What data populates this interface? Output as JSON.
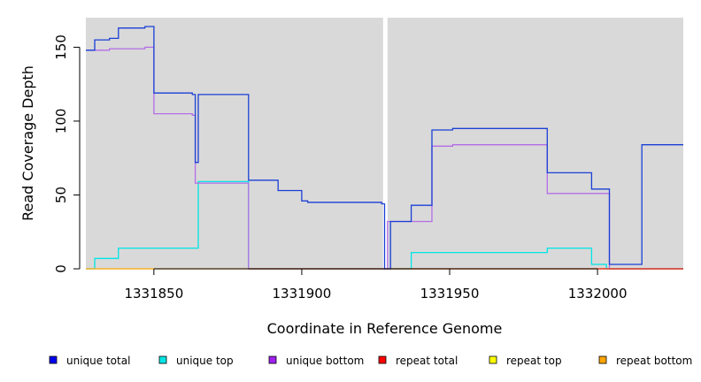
{
  "chart_data": {
    "type": "line",
    "title": "",
    "xlabel": "Coordinate in Reference Genome",
    "ylabel": "Read Coverage Depth",
    "xlim": [
      1331827,
      1332029
    ],
    "ylim": [
      0,
      170
    ],
    "x_ticks": [
      1331850,
      1331900,
      1331950,
      1332000
    ],
    "y_ticks": [
      0,
      50,
      100,
      150
    ],
    "grid": false,
    "background": "#d9d9d9",
    "gap": [
      1331927.5,
      1331929
    ],
    "legend_position": "bottom",
    "series": [
      {
        "name": "unique top",
        "color": "#00e5e5",
        "x": [
          1331827,
          1331830,
          1331830,
          1331838,
          1331838,
          1331865,
          1331865,
          1331882,
          1331882,
          1331928,
          1331928,
          1331929,
          1331929,
          1331937,
          1331937,
          1331983,
          1331983,
          1331998,
          1331998,
          1332003,
          1332003,
          1332029
        ],
        "y": [
          0,
          0,
          7,
          7,
          14,
          14,
          59,
          59,
          0,
          0,
          0,
          0,
          0,
          0,
          11,
          11,
          14,
          14,
          3,
          3,
          0,
          0
        ]
      },
      {
        "name": "unique bottom",
        "color": "#b36ee6",
        "x": [
          1331827,
          1331835,
          1331835,
          1331847,
          1331847,
          1331850,
          1331850,
          1331863,
          1331863,
          1331864,
          1331864,
          1331882,
          1331882,
          1331928,
          1331928,
          1331929,
          1331929,
          1331944,
          1331944,
          1331951,
          1331951,
          1331983,
          1331983,
          1332004,
          1332004,
          1332029
        ],
        "y": [
          148,
          148,
          149,
          149,
          150,
          150,
          105,
          105,
          104,
          104,
          58,
          58,
          0,
          0,
          0,
          0,
          32,
          32,
          83,
          83,
          84,
          84,
          51,
          51,
          0,
          0
        ]
      },
      {
        "name": "repeat bottom",
        "color": "#ffa500",
        "x": [
          1331827,
          1331928,
          1331928,
          1331929,
          1331929,
          1332029
        ],
        "y": [
          0,
          0,
          0,
          0,
          0,
          0
        ]
      },
      {
        "name": "repeat total",
        "color": "#e0201a",
        "x": [
          1331882,
          1331928,
          1331928,
          1331929,
          1331929,
          1332029
        ],
        "y": [
          0,
          0,
          0,
          0,
          0,
          0
        ]
      },
      {
        "name": "unique total",
        "color": "#1a3fd6",
        "x": [
          1331827,
          1331830,
          1331830,
          1331835,
          1331835,
          1331838,
          1331838,
          1331847,
          1331847,
          1331850,
          1331850,
          1331863,
          1331863,
          1331864,
          1331864,
          1331865,
          1331865,
          1331882,
          1331882,
          1331892,
          1331892,
          1331900,
          1331900,
          1331902,
          1331902,
          1331927,
          1331927,
          1331928,
          1331928,
          1331929,
          1331929,
          1331930,
          1331930,
          1331937,
          1331937,
          1331944,
          1331944,
          1331951,
          1331951,
          1331983,
          1331983,
          1331998,
          1331998,
          1332004,
          1332004,
          1332015,
          1332015,
          1332029
        ],
        "y": [
          148,
          148,
          155,
          155,
          156,
          156,
          163,
          163,
          164,
          164,
          119,
          119,
          118,
          118,
          72,
          72,
          118,
          118,
          60,
          60,
          53,
          53,
          46,
          46,
          45,
          45,
          44,
          44,
          0,
          0,
          0,
          0,
          32,
          32,
          43,
          43,
          94,
          94,
          95,
          95,
          65,
          65,
          54,
          54,
          3,
          3,
          84,
          84
        ]
      }
    ],
    "legend": [
      {
        "label": "unique total",
        "color": "#0000ee"
      },
      {
        "label": "unique top",
        "color": "#00e5e5"
      },
      {
        "label": "unique bottom",
        "color": "#a020f0"
      },
      {
        "label": "repeat total",
        "color": "#ff0000"
      },
      {
        "label": "repeat top",
        "color": "#ffff00"
      },
      {
        "label": "repeat bottom",
        "color": "#ffa500"
      }
    ]
  }
}
